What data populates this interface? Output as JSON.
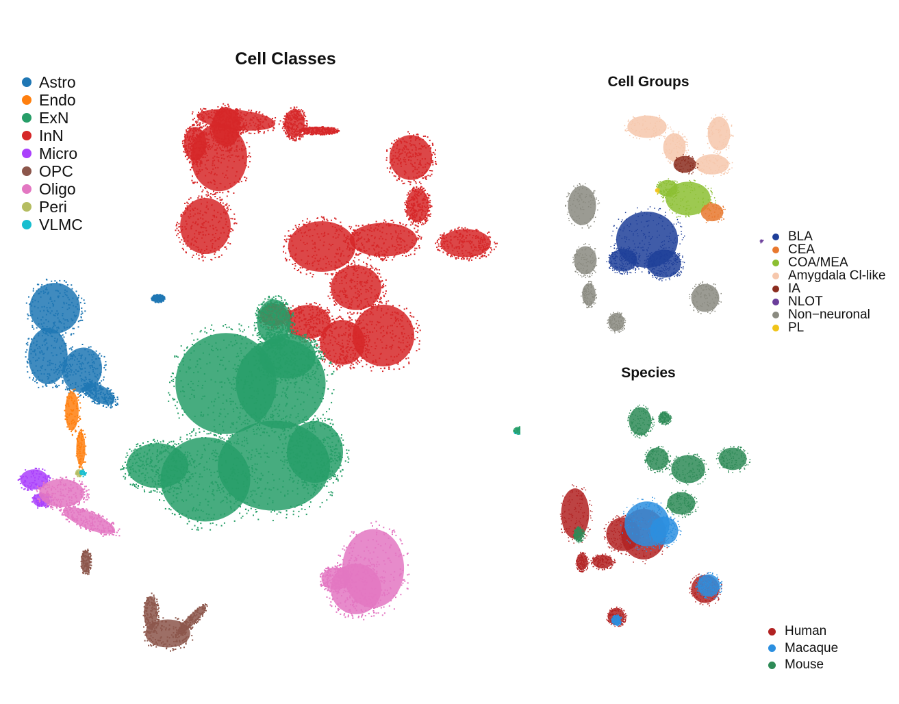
{
  "chart_data": [
    {
      "type": "scatter",
      "title": "Cell Classes",
      "legend_position": "top-left",
      "grid": false,
      "axes": "hidden",
      "series": [
        {
          "name": "Astro",
          "color": "#1f77b4"
        },
        {
          "name": "Endo",
          "color": "#ff7f0e"
        },
        {
          "name": "ExN",
          "color": "#279e68"
        },
        {
          "name": "InN",
          "color": "#d62728"
        },
        {
          "name": "Micro",
          "color": "#aa40fc"
        },
        {
          "name": "OPC",
          "color": "#8c564b"
        },
        {
          "name": "Oligo",
          "color": "#e377c2"
        },
        {
          "name": "Peri",
          "color": "#b5bd61"
        },
        {
          "name": "VLMC",
          "color": "#17becf"
        }
      ]
    },
    {
      "type": "scatter",
      "title": "Cell Groups",
      "legend_position": "right",
      "grid": false,
      "axes": "hidden",
      "series": [
        {
          "name": "BLA",
          "color": "#1f3f99"
        },
        {
          "name": "CEA",
          "color": "#e8782e"
        },
        {
          "name": "COA/MEA",
          "color": "#8cbf32"
        },
        {
          "name": "Amygdala Cl-like",
          "color": "#f6c7ac"
        },
        {
          "name": "IA",
          "color": "#8b2d1f"
        },
        {
          "name": "NLOT",
          "color": "#6a3d9a"
        },
        {
          "name": "Non−neuronal",
          "color": "#8a8a80"
        },
        {
          "name": "PL",
          "color": "#f0c419"
        }
      ]
    },
    {
      "type": "scatter",
      "title": "Species",
      "legend_position": "bottom-right",
      "grid": false,
      "axes": "hidden",
      "series": [
        {
          "name": "Human",
          "color": "#b22222"
        },
        {
          "name": "Macaque",
          "color": "#2b8fe0"
        },
        {
          "name": "Mouse",
          "color": "#2e8b57"
        }
      ]
    }
  ]
}
